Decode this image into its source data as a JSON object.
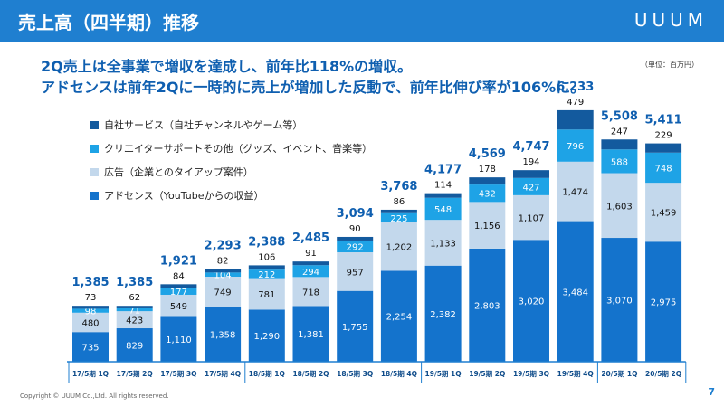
{
  "header": {
    "title": "売上高（四半期）推移",
    "logo": "UUUM"
  },
  "headline": {
    "line1": "2Q売上は全事業で増収を達成し、前年比118%の増収。",
    "line2": "アドセンスは前年2Qに一時的に売上が増加した反動で、前年比伸び率が106%に。"
  },
  "unit_note": "（単位：百万円）",
  "legend": [
    {
      "label": "自社サービス（自社チャンネルやゲーム等）",
      "color": "#135a9e"
    },
    {
      "label": "クリエイターサポートその他（グッズ、イベント、音楽等）",
      "color": "#1ea3e6"
    },
    {
      "label": "広告（企業とのタイアップ案件）",
      "color": "#c3d8ec"
    },
    {
      "label": "アドセンス（YouTubeからの収益）",
      "color": "#1473cc"
    }
  ],
  "footer": {
    "copyright": "Copyright © UUUM Co.,Ltd. All rights reserved.",
    "page": "7"
  },
  "chart_data": {
    "type": "bar",
    "stacked": true,
    "categories": [
      "17/5期 1Q",
      "17/5期 2Q",
      "17/5期 3Q",
      "17/5期 4Q",
      "18/5期 1Q",
      "18/5期 2Q",
      "18/5期 3Q",
      "18/5期 4Q",
      "19/5期 1Q",
      "19/5期 2Q",
      "19/5期 3Q",
      "19/5期 4Q",
      "20/5期 1Q",
      "20/5期 2Q"
    ],
    "totals": [
      1385,
      1385,
      1921,
      2293,
      2388,
      2485,
      3094,
      3768,
      4177,
      4569,
      4747,
      6233,
      5508,
      5411
    ],
    "series": [
      {
        "name": "アドセンス（YouTubeからの収益）",
        "color": "#1473cc",
        "values": [
          735,
          829,
          1110,
          1358,
          1290,
          1381,
          1755,
          2254,
          2382,
          2803,
          3020,
          3484,
          3070,
          2975
        ]
      },
      {
        "name": "広告（企業とのタイアップ案件）",
        "color": "#c3d8ec",
        "values": [
          480,
          423,
          549,
          749,
          781,
          718,
          957,
          1202,
          1133,
          1156,
          1107,
          1474,
          1603,
          1459
        ]
      },
      {
        "name": "クリエイターサポートその他（グッズ、イベント、音楽等）",
        "color": "#1ea3e6",
        "values": [
          98,
          71,
          177,
          104,
          212,
          294,
          292,
          225,
          548,
          432,
          427,
          796,
          588,
          748
        ]
      },
      {
        "name": "自社サービス（自社チャンネルやゲーム等）",
        "color": "#135a9e",
        "values": [
          73,
          62,
          84,
          82,
          106,
          91,
          90,
          86,
          114,
          178,
          194,
          479,
          247,
          229
        ]
      }
    ],
    "ylim": [
      0,
      6500
    ],
    "grid": false,
    "legend_position": "top-left"
  }
}
